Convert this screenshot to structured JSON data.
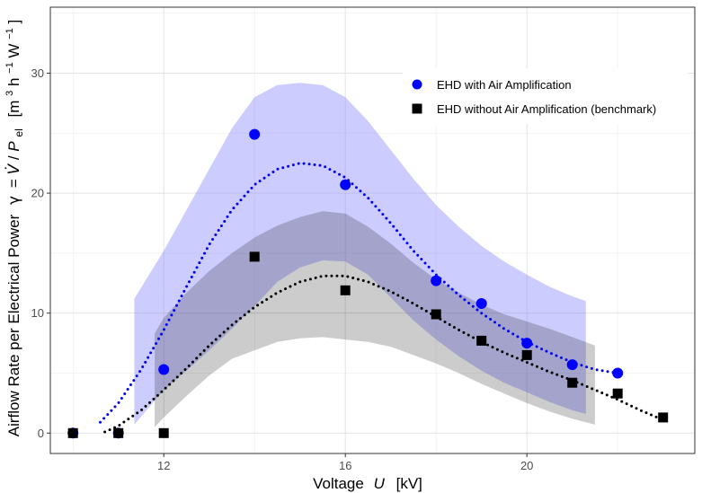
{
  "chart_data": {
    "type": "scatter",
    "xlabel": {
      "main": "Voltage",
      "var": "U",
      "unit": "[kV]"
    },
    "ylabel": {
      "main": "Airflow Rate per Electrical Power",
      "gamma": "γ",
      "eq": "= ",
      "vdot": "V̇",
      "slash": "/",
      "p": "P",
      "psub": "el",
      "unit_open": "[m",
      "unit_sup3": "3",
      "unit_h": " h",
      "unit_sup_h": "−1",
      "unit_w": "W",
      "unit_sup_w": "−1",
      "unit_close": "]"
    },
    "xlim": [
      9.5,
      23.7
    ],
    "ylim": [
      -1.7,
      35.5
    ],
    "x_ticks": [
      12,
      16,
      20
    ],
    "y_ticks": [
      0,
      10,
      20,
      30
    ],
    "x_tick_labels": [
      "12",
      "16",
      "20"
    ],
    "y_tick_labels": [
      "0",
      "10",
      "20",
      "30"
    ],
    "grid": true,
    "legend_position": "top-right",
    "series": [
      {
        "name": "EHD with Air Amplification",
        "color": "#0000ff",
        "marker": "circle",
        "points": [
          {
            "x": 10,
            "y": 0
          },
          {
            "x": 11,
            "y": 0
          },
          {
            "x": 12,
            "y": 5.3
          },
          {
            "x": 14,
            "y": 24.9
          },
          {
            "x": 16,
            "y": 20.7
          },
          {
            "x": 18,
            "y": 12.7
          },
          {
            "x": 19,
            "y": 10.8
          },
          {
            "x": 20,
            "y": 7.5
          },
          {
            "x": 21,
            "y": 5.7
          },
          {
            "x": 22,
            "y": 5.0
          }
        ],
        "fit_curve": [
          [
            10.6,
            0.9
          ],
          [
            11.0,
            2.5
          ],
          [
            11.5,
            5.3
          ],
          [
            12.0,
            8.6
          ],
          [
            12.5,
            12.2
          ],
          [
            13.0,
            15.7
          ],
          [
            13.5,
            18.6
          ],
          [
            14.0,
            20.7
          ],
          [
            14.5,
            22.0
          ],
          [
            15.0,
            22.5
          ],
          [
            15.5,
            22.3
          ],
          [
            16.0,
            21.3
          ],
          [
            16.5,
            19.6
          ],
          [
            17.0,
            17.5
          ],
          [
            17.5,
            15.2
          ],
          [
            18.0,
            13.2
          ],
          [
            18.5,
            11.5
          ],
          [
            19.0,
            10.0
          ],
          [
            19.5,
            8.7
          ],
          [
            20.0,
            7.6
          ],
          [
            20.5,
            6.7
          ],
          [
            21.0,
            5.9
          ],
          [
            21.5,
            5.3
          ],
          [
            22.0,
            5.0
          ]
        ],
        "band": {
          "x": [
            11.35,
            12.0,
            12.5,
            13.0,
            13.5,
            14.0,
            14.5,
            15.0,
            15.5,
            16.0,
            16.5,
            17.0,
            17.5,
            18.0,
            18.5,
            19.0,
            19.5,
            20.0,
            20.5,
            21.0,
            21.3
          ],
          "upper": [
            11.2,
            15.2,
            18.6,
            22.0,
            25.4,
            28.0,
            29.0,
            29.2,
            29.0,
            28.0,
            26.0,
            23.6,
            21.2,
            19.0,
            17.2,
            15.6,
            14.3,
            13.2,
            12.2,
            11.4,
            11.0
          ],
          "lower": [
            0.7,
            3.6,
            5.2,
            6.9,
            8.7,
            10.6,
            12.6,
            13.8,
            14.4,
            14.3,
            13.2,
            11.3,
            9.4,
            7.8,
            6.4,
            5.2,
            4.2,
            3.4,
            2.6,
            1.9,
            1.6
          ]
        }
      },
      {
        "name": "EHD without Air Amplification (benchmark)",
        "color": "#000000",
        "marker": "square",
        "points": [
          {
            "x": 10,
            "y": 0
          },
          {
            "x": 11,
            "y": 0
          },
          {
            "x": 12,
            "y": 0
          },
          {
            "x": 14,
            "y": 14.7
          },
          {
            "x": 16,
            "y": 11.9
          },
          {
            "x": 18,
            "y": 9.9
          },
          {
            "x": 19,
            "y": 7.7
          },
          {
            "x": 20,
            "y": 6.5
          },
          {
            "x": 21,
            "y": 4.2
          },
          {
            "x": 22,
            "y": 3.3
          },
          {
            "x": 23,
            "y": 1.3
          }
        ],
        "fit_curve": [
          [
            10.7,
            0.1
          ],
          [
            11.0,
            0.6
          ],
          [
            11.5,
            1.9
          ],
          [
            12.0,
            3.6
          ],
          [
            12.5,
            5.4
          ],
          [
            13.0,
            7.3
          ],
          [
            13.5,
            9.0
          ],
          [
            14.0,
            10.5
          ],
          [
            14.5,
            11.7
          ],
          [
            15.0,
            12.6
          ],
          [
            15.5,
            13.1
          ],
          [
            16.0,
            13.1
          ],
          [
            16.5,
            12.6
          ],
          [
            17.0,
            11.8
          ],
          [
            17.5,
            10.8
          ],
          [
            18.0,
            9.7
          ],
          [
            18.5,
            8.6
          ],
          [
            19.0,
            7.6
          ],
          [
            19.5,
            6.7
          ],
          [
            20.0,
            5.9
          ],
          [
            20.5,
            5.1
          ],
          [
            21.0,
            4.4
          ],
          [
            21.5,
            3.6
          ],
          [
            22.0,
            2.8
          ],
          [
            22.5,
            1.9
          ],
          [
            23.0,
            1.1
          ]
        ],
        "band": {
          "x": [
            11.8,
            12.0,
            12.5,
            13.0,
            13.5,
            14.0,
            14.5,
            15.0,
            15.5,
            16.0,
            16.5,
            17.0,
            17.5,
            18.0,
            18.5,
            19.0,
            19.5,
            20.0,
            20.5,
            21.0,
            21.5
          ],
          "upper": [
            8.3,
            9.6,
            11.7,
            13.5,
            15.0,
            16.3,
            17.3,
            18.0,
            18.5,
            18.3,
            17.2,
            15.8,
            14.2,
            12.8,
            11.7,
            10.7,
            9.9,
            9.3,
            8.7,
            8.0,
            7.3
          ],
          "lower": [
            0.5,
            1.3,
            3.1,
            4.8,
            6.2,
            6.9,
            7.6,
            7.9,
            8.0,
            7.8,
            7.6,
            7.2,
            6.5,
            5.8,
            5.0,
            4.1,
            3.3,
            2.5,
            1.8,
            1.2,
            0.7
          ]
        }
      }
    ]
  }
}
